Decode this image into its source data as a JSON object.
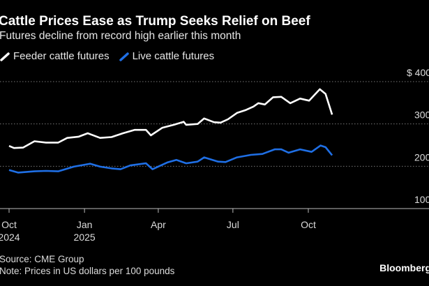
{
  "chart_data": {
    "type": "line",
    "title": "Cattle Prices Ease as Trump Seeks Relief on Beef",
    "subtitle": "Futures decline from record high earlier this month",
    "ylim": [
      100,
      400
    ],
    "y_ticks": [
      {
        "value": 400,
        "label": "$ 400"
      },
      {
        "value": 300,
        "label": "300"
      },
      {
        "value": 200,
        "label": "200"
      },
      {
        "value": 100,
        "label": "100"
      }
    ],
    "x_ticks": [
      {
        "date": "2024-10-01",
        "label": "Oct",
        "sub": "2024"
      },
      {
        "date": "2025-01-01",
        "label": "Jan",
        "sub": "2025"
      },
      {
        "date": "2025-04-01",
        "label": "Apr",
        "sub": ""
      },
      {
        "date": "2025-07-01",
        "label": "Jul",
        "sub": ""
      },
      {
        "date": "2025-10-01",
        "label": "Oct",
        "sub": ""
      }
    ],
    "grid": "horizontal dotted",
    "legend_position": "top-left",
    "series": [
      {
        "name": "Feeder cattle futures",
        "color": "#ffffff",
        "x": [
          "2024-10-01",
          "2024-10-07",
          "2024-10-18",
          "2024-11-01",
          "2024-11-15",
          "2024-11-30",
          "2024-12-11",
          "2024-12-25",
          "2025-01-05",
          "2025-01-20",
          "2025-02-03",
          "2025-02-17",
          "2025-03-03",
          "2025-03-17",
          "2025-03-23",
          "2025-04-06",
          "2025-04-20",
          "2025-05-02",
          "2025-05-05",
          "2025-05-19",
          "2025-05-27",
          "2025-06-08",
          "2025-06-16",
          "2025-06-25",
          "2025-07-06",
          "2025-07-17",
          "2025-07-26",
          "2025-08-01",
          "2025-08-09",
          "2025-08-19",
          "2025-08-29",
          "2025-09-09",
          "2025-09-21",
          "2025-10-02",
          "2025-10-15",
          "2025-10-22",
          "2025-10-30"
        ],
        "y": [
          248,
          243,
          244,
          259,
          256,
          256,
          267,
          270,
          278,
          267,
          269,
          278,
          286,
          286,
          273,
          291,
          298,
          305,
          298,
          300,
          313,
          304,
          303,
          311,
          326,
          333,
          341,
          349,
          346,
          363,
          364,
          349,
          360,
          355,
          382,
          371,
          322
        ]
      },
      {
        "name": "Live cattle futures",
        "color": "#1f6fe5",
        "x": [
          "2024-10-01",
          "2024-10-12",
          "2024-11-01",
          "2024-11-15",
          "2024-11-30",
          "2024-12-19",
          "2025-01-08",
          "2025-01-20",
          "2025-02-03",
          "2025-02-14",
          "2025-02-26",
          "2025-03-17",
          "2025-03-25",
          "2025-04-12",
          "2025-04-23",
          "2025-05-05",
          "2025-05-19",
          "2025-05-27",
          "2025-06-13",
          "2025-06-22",
          "2025-07-06",
          "2025-07-23",
          "2025-08-06",
          "2025-08-21",
          "2025-08-29",
          "2025-09-07",
          "2025-09-21",
          "2025-10-05",
          "2025-10-16",
          "2025-10-22",
          "2025-10-30"
        ],
        "y": [
          191,
          185,
          188,
          189,
          188,
          199,
          206,
          199,
          195,
          193,
          202,
          207,
          193,
          209,
          215,
          207,
          211,
          221,
          211,
          210,
          221,
          227,
          229,
          240,
          240,
          232,
          240,
          234,
          249,
          245,
          226
        ]
      }
    ]
  },
  "footer": {
    "source": "Source: CME Group",
    "note": "Note: Prices in US dollars per 100 pounds",
    "brand": "Bloomberg"
  }
}
